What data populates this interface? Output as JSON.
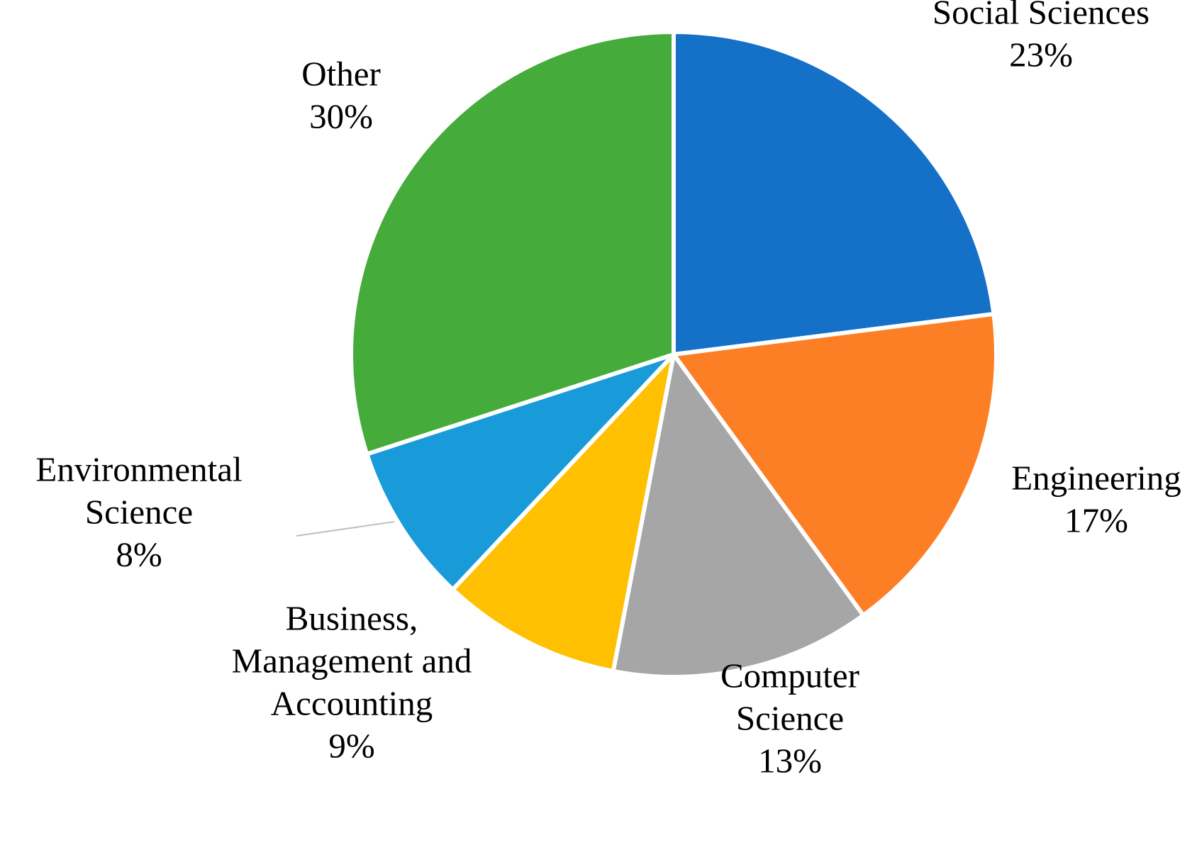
{
  "chart_data": {
    "type": "pie",
    "title": "",
    "start_angle_deg": 0,
    "direction": "clockwise",
    "slices": [
      {
        "label": [
          "Social Sciences"
        ],
        "pct_label": "23%",
        "value": 23,
        "color": "#1570C8"
      },
      {
        "label": [
          "Engineering"
        ],
        "pct_label": "17%",
        "value": 17,
        "color": "#FD7F25"
      },
      {
        "label": [
          "Computer",
          "Science"
        ],
        "pct_label": "13%",
        "value": 13,
        "color": "#A6A6A6"
      },
      {
        "label": [
          "Business,",
          "Management  and",
          "Accounting"
        ],
        "pct_label": "9%",
        "value": 9,
        "color": "#FEC000"
      },
      {
        "label": [
          "Environmental",
          "Science"
        ],
        "pct_label": "8%",
        "value": 8,
        "color": "#189BD8"
      },
      {
        "label": [
          "Other"
        ],
        "pct_label": "30%",
        "value": 30,
        "color": "#45AB3A"
      }
    ]
  }
}
